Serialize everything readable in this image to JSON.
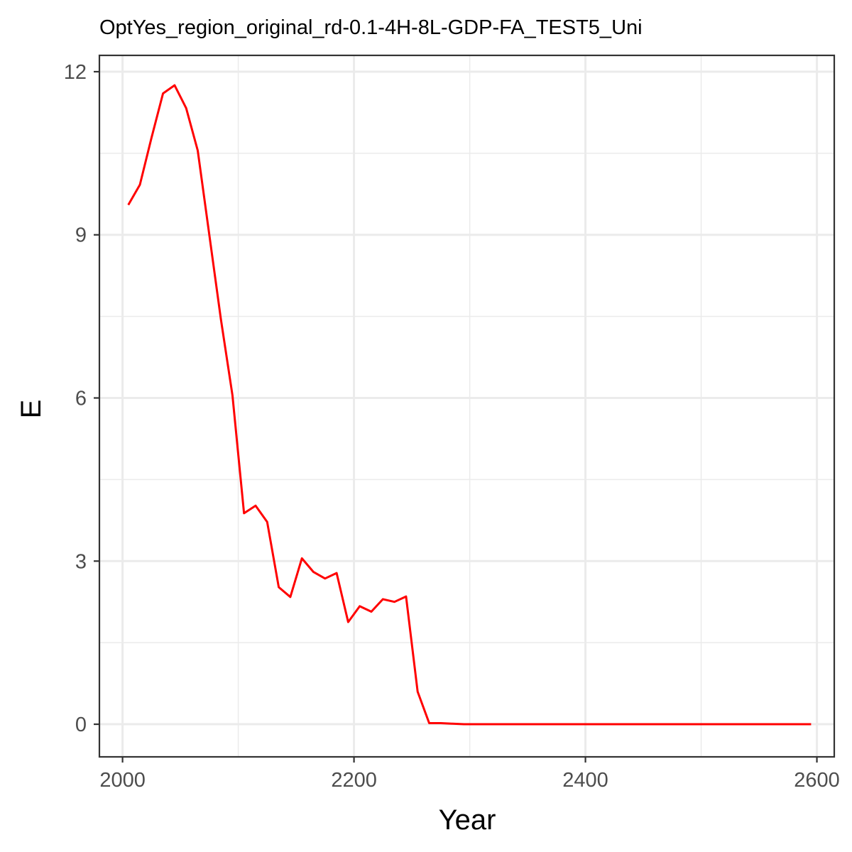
{
  "chart_data": {
    "type": "line",
    "title": "OptYes_region_original_rd-0.1-4H-8L-GDP-FA_TEST5_Uni",
    "xlabel": "Year",
    "ylabel": "E",
    "xlim": [
      1980,
      2615
    ],
    "ylim": [
      -0.6,
      12.3
    ],
    "x_ticks": [
      2000,
      2200,
      2400,
      2600
    ],
    "x_tick_labels": [
      "2000",
      "2200",
      "2400",
      "2600"
    ],
    "x_minor_ticks": [
      2100,
      2300,
      2500
    ],
    "y_ticks": [
      0,
      3,
      6,
      9,
      12
    ],
    "y_tick_labels": [
      "0",
      "3",
      "6",
      "9",
      "12"
    ],
    "y_minor_ticks": [
      1.5,
      4.5,
      7.5,
      10.5
    ],
    "grid": true,
    "legend": "none",
    "series": [
      {
        "color": "#ff0000",
        "x": [
          2005,
          2015,
          2025,
          2035,
          2045,
          2055,
          2065,
          2075,
          2085,
          2095,
          2105,
          2115,
          2125,
          2135,
          2145,
          2155,
          2165,
          2175,
          2185,
          2195,
          2205,
          2215,
          2225,
          2235,
          2245,
          2255,
          2265,
          2275,
          2285,
          2295,
          2305,
          2315,
          2325,
          2335,
          2345,
          2355,
          2365,
          2375,
          2385,
          2395,
          2405,
          2415,
          2425,
          2435,
          2445,
          2455,
          2465,
          2475,
          2485,
          2495,
          2505,
          2515,
          2525,
          2535,
          2545,
          2555,
          2565,
          2575,
          2585,
          2595
        ],
        "y": [
          9.55,
          9.92,
          10.78,
          11.6,
          11.75,
          11.33,
          10.55,
          9.0,
          7.45,
          6.05,
          3.88,
          4.02,
          3.72,
          2.52,
          2.34,
          3.05,
          2.8,
          2.68,
          2.78,
          1.88,
          2.17,
          2.07,
          2.3,
          2.25,
          2.35,
          0.6,
          0.02,
          0.02,
          0.01,
          0.0,
          0.0,
          0.0,
          0.0,
          0.0,
          0.0,
          0.0,
          0.0,
          0.0,
          0.0,
          0.0,
          0.0,
          0.0,
          0.0,
          0.0,
          0.0,
          0.0,
          0.0,
          0.0,
          0.0,
          0.0,
          0.0,
          0.0,
          0.0,
          0.0,
          0.0,
          0.0,
          0.0,
          0.0,
          0.0,
          0.0
        ]
      }
    ]
  }
}
